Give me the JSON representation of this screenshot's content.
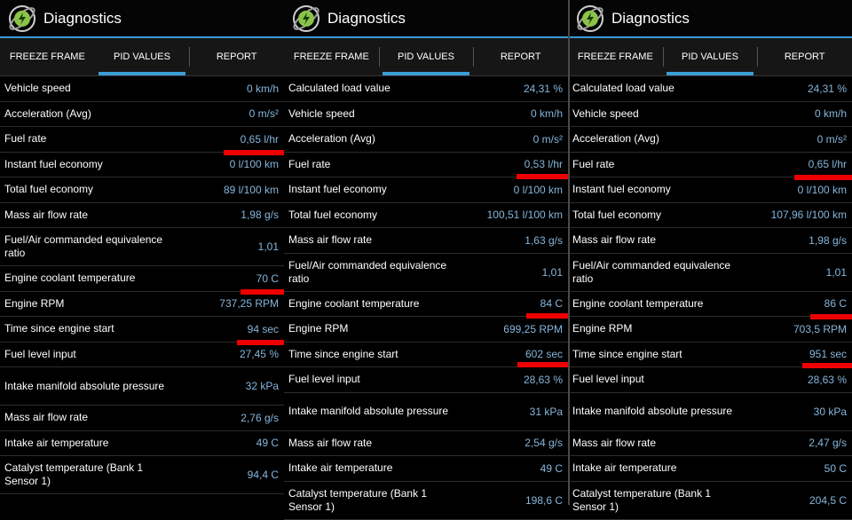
{
  "app": {
    "title": "Diagnostics"
  },
  "tabs": [
    "FREEZE FRAME",
    "PID VALUES",
    "REPORT"
  ],
  "colors": {
    "accent": "#3a9bd5",
    "value": "#86b6dc",
    "marker": "#ee0000",
    "icon": "#8bc34a"
  },
  "panels": [
    {
      "rows": [
        {
          "label": "Vehicle speed",
          "value": "0 km/h"
        },
        {
          "label": "Acceleration (Avg)",
          "value": "0 m/s²"
        },
        {
          "label": "Fuel rate",
          "value": "0,65 l/hr"
        },
        {
          "label": "Instant fuel economy",
          "value": "0 l/100 km"
        },
        {
          "label": "Total fuel economy",
          "value": "89 l/100 km"
        },
        {
          "label": "Mass air flow rate",
          "value": "1,98 g/s"
        },
        {
          "label": "Fuel/Air commanded equivalence ratio",
          "value": "1,01"
        },
        {
          "label": "Engine coolant temperature",
          "value": "70 C"
        },
        {
          "label": "Engine RPM",
          "value": "737,25 RPM"
        },
        {
          "label": "Time since engine start",
          "value": "94 sec"
        },
        {
          "label": "Fuel level input",
          "value": "27,45 %"
        },
        {
          "label": "Intake manifold absolute pressure",
          "value": "32 kPa"
        },
        {
          "label": "Mass air flow rate",
          "value": "2,76 g/s"
        },
        {
          "label": "Intake air temperature",
          "value": "49 C"
        },
        {
          "label": "Catalyst temperature (Bank 1 Sensor 1)",
          "value": "94,4 C"
        }
      ]
    },
    {
      "rows": [
        {
          "label": "Calculated load value",
          "value": "24,31 %"
        },
        {
          "label": "Vehicle speed",
          "value": "0 km/h"
        },
        {
          "label": "Acceleration (Avg)",
          "value": "0 m/s²"
        },
        {
          "label": "Fuel rate",
          "value": "0,53 l/hr"
        },
        {
          "label": "Instant fuel economy",
          "value": "0 l/100 km"
        },
        {
          "label": "Total fuel economy",
          "value": "100,51 l/100 km"
        },
        {
          "label": "Mass air flow rate",
          "value": "1,63 g/s"
        },
        {
          "label": "Fuel/Air commanded equivalence ratio",
          "value": "1,01"
        },
        {
          "label": "Engine coolant temperature",
          "value": "84 C"
        },
        {
          "label": "Engine RPM",
          "value": "699,25 RPM"
        },
        {
          "label": "Time since engine start",
          "value": "602 sec"
        },
        {
          "label": "Fuel level input",
          "value": "28,63 %"
        },
        {
          "label": "Intake manifold absolute pressure",
          "value": "31 kPa"
        },
        {
          "label": "Mass air flow rate",
          "value": "2,54 g/s"
        },
        {
          "label": "Intake air temperature",
          "value": "49 C"
        },
        {
          "label": "Catalyst temperature (Bank 1 Sensor 1)",
          "value": "198,6 C"
        }
      ]
    },
    {
      "rows": [
        {
          "label": "Calculated load value",
          "value": "24,31 %"
        },
        {
          "label": "Vehicle speed",
          "value": "0 km/h"
        },
        {
          "label": "Acceleration (Avg)",
          "value": "0 m/s²"
        },
        {
          "label": "Fuel rate",
          "value": "0,65 l/hr"
        },
        {
          "label": "Instant fuel economy",
          "value": "0 l/100 km"
        },
        {
          "label": "Total fuel economy",
          "value": "107,96 l/100 km"
        },
        {
          "label": "Mass air flow rate",
          "value": "1,98 g/s"
        },
        {
          "label": "Fuel/Air commanded equivalence ratio",
          "value": "1,01"
        },
        {
          "label": "Engine coolant temperature",
          "value": "86 C"
        },
        {
          "label": "Engine RPM",
          "value": "703,5 RPM"
        },
        {
          "label": "Time since engine start",
          "value": "951 sec"
        },
        {
          "label": "Fuel level input",
          "value": "28,63 %"
        },
        {
          "label": "Intake manifold absolute pressure",
          "value": "30 kPa"
        },
        {
          "label": "Mass air flow rate",
          "value": "2,47 g/s"
        },
        {
          "label": "Intake air temperature",
          "value": "50 C"
        },
        {
          "label": "Catalyst temperature (Bank 1 Sensor 1)",
          "value": "204,5 C"
        }
      ]
    }
  ]
}
